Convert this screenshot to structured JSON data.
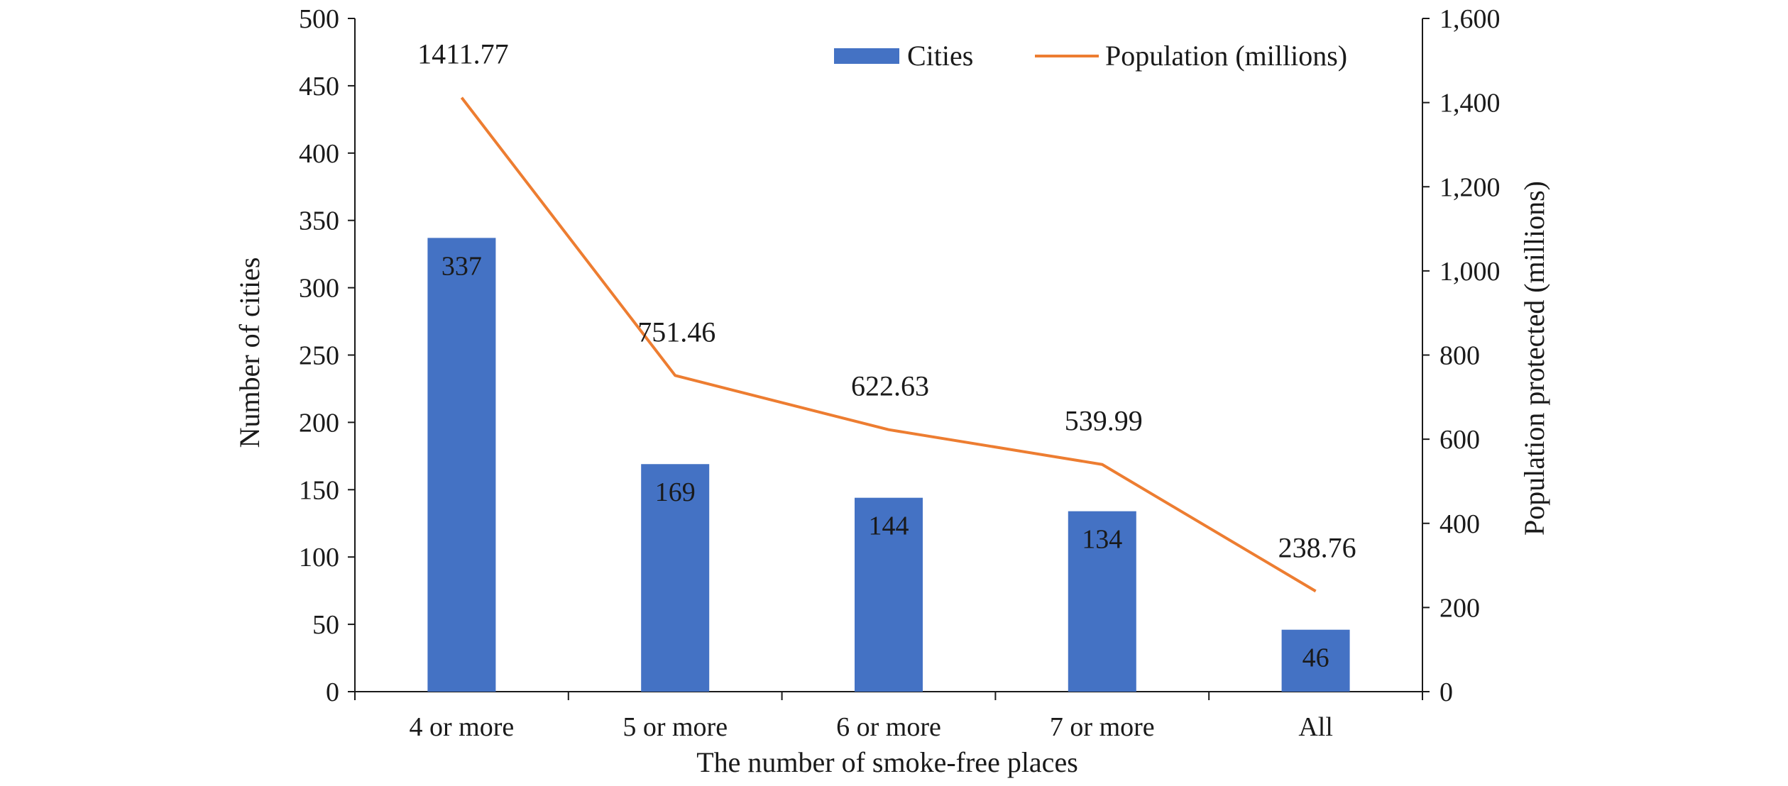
{
  "chart_data": {
    "type": "bar",
    "categories": [
      "4 or more",
      "5 or more",
      "6 or more",
      "7 or more",
      "All"
    ],
    "xlabel": "The number of smoke-free places",
    "ylabel": "Number of cities",
    "y2label": "Population protected (millions)",
    "ylim": [
      0,
      500
    ],
    "yticks": [
      "0",
      "50",
      "100",
      "150",
      "200",
      "250",
      "300",
      "350",
      "400",
      "450",
      "500"
    ],
    "y2lim": [
      0,
      1600
    ],
    "y2ticks": [
      "0",
      "200",
      "400",
      "600",
      "800",
      "1,000",
      "1,200",
      "1,400",
      "1,600"
    ],
    "grid": false,
    "legend_position": "top-right",
    "series": [
      {
        "name": "Cities",
        "kind": "bar",
        "axis": "left",
        "color": "#4472C4",
        "values": [
          337,
          169,
          144,
          134,
          46
        ],
        "labels": [
          "337",
          "169",
          "144",
          "134",
          "46"
        ]
      },
      {
        "name": "Population (millions)",
        "kind": "line",
        "axis": "right",
        "color": "#ED7D31",
        "values": [
          1411.77,
          751.46,
          622.63,
          539.99,
          238.76
        ],
        "labels": [
          "1411.77",
          "751.46",
          "622.63",
          "539.99",
          "238.76"
        ]
      }
    ]
  }
}
